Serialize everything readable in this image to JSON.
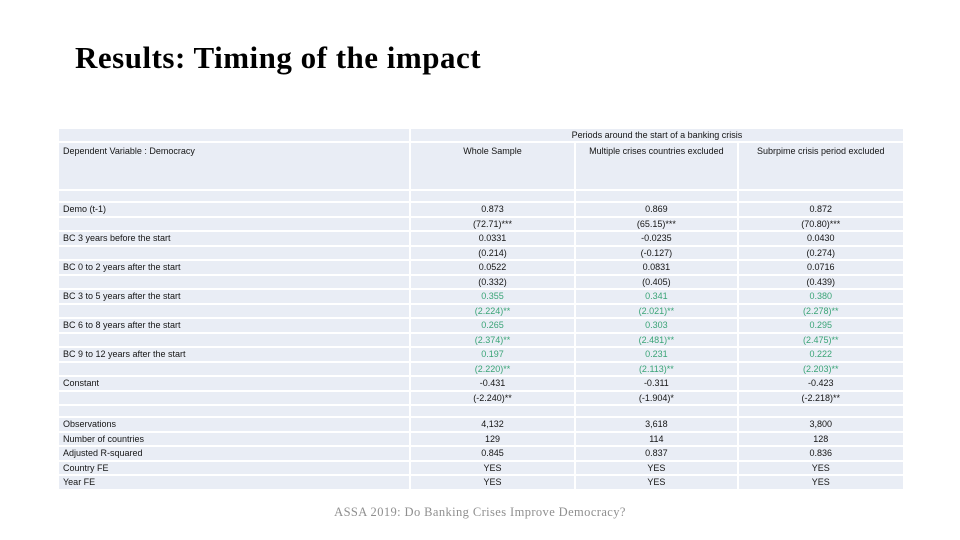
{
  "slide": {
    "title": "Results: Timing of the impact",
    "footer": "ASSA 2019: Do Banking Crises Improve Democracy?"
  },
  "table": {
    "span_header": "Periods around the start of a banking crisis",
    "columns": [
      "Dependent Variable : Democracy",
      "Whole Sample",
      "Multiple crises countries excluded",
      "Subrpime crisis period excluded"
    ],
    "rows": [
      {
        "type": "spacer"
      },
      {
        "label": "Demo (t-1)",
        "values": [
          "0.873",
          "0.869",
          "0.872"
        ],
        "green": false
      },
      {
        "label": "",
        "values": [
          "(72.71)***",
          "(65.15)***",
          "(70.80)***"
        ],
        "green": false
      },
      {
        "label": "BC 3 years before the start",
        "values": [
          "0.0331",
          "-0.0235",
          "0.0430"
        ],
        "green": false
      },
      {
        "label": "",
        "values": [
          "(0.214)",
          "(-0.127)",
          "(0.274)"
        ],
        "green": false
      },
      {
        "label": "BC 0 to 2 years after the start",
        "values": [
          "0.0522",
          "0.0831",
          "0.0716"
        ],
        "green": false
      },
      {
        "label": "",
        "values": [
          "(0.332)",
          "(0.405)",
          "(0.439)"
        ],
        "green": false
      },
      {
        "label": "BC 3 to 5 years after the start",
        "values": [
          "0.355",
          "0.341",
          "0.380"
        ],
        "green": true
      },
      {
        "label": "",
        "values": [
          "(2.224)**",
          "(2.021)**",
          "(2.278)**"
        ],
        "green": true
      },
      {
        "label": "BC 6 to 8 years after the start",
        "values": [
          "0.265",
          "0.303",
          "0.295"
        ],
        "green": true
      },
      {
        "label": "",
        "values": [
          "(2.374)**",
          "(2.481)**",
          "(2.475)**"
        ],
        "green": true
      },
      {
        "label": "BC 9 to 12 years after the start",
        "values": [
          "0.197",
          "0.231",
          "0.222"
        ],
        "green": true
      },
      {
        "label": "",
        "values": [
          "(2.220)**",
          "(2.113)**",
          "(2.203)**"
        ],
        "green": true
      },
      {
        "label": "Constant",
        "values": [
          "-0.431",
          "-0.311",
          "-0.423"
        ],
        "green": false
      },
      {
        "label": "",
        "values": [
          "(-2.240)**",
          "(-1.904)*",
          "(-2.218)**"
        ],
        "green": false
      },
      {
        "type": "spacer"
      },
      {
        "label": "Observations",
        "values": [
          "4,132",
          "3,618",
          "3,800"
        ],
        "green": false
      },
      {
        "label": "Number of countries",
        "values": [
          "129",
          "114",
          "128"
        ],
        "green": false
      },
      {
        "label": "Adjusted R-squared",
        "values": [
          "0.845",
          "0.837",
          "0.836"
        ],
        "green": false
      },
      {
        "label": "Country FE",
        "values": [
          "YES",
          "YES",
          "YES"
        ],
        "green": false
      },
      {
        "label": "Year FE",
        "values": [
          "YES",
          "YES",
          "YES"
        ],
        "green": false
      }
    ],
    "colors": {
      "row_bg": "#e9edf5",
      "highlight_green": "#3aa477"
    }
  }
}
